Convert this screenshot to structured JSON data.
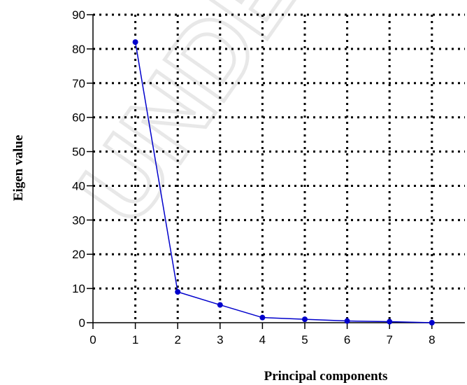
{
  "chart_data": {
    "type": "line",
    "xlabel": "Principal components",
    "ylabel": "Eigen value",
    "xlim": [
      0,
      8
    ],
    "ylim": [
      0,
      90
    ],
    "x_ticks": [
      0,
      1,
      2,
      3,
      4,
      5,
      6,
      7,
      8
    ],
    "y_ticks": [
      0,
      10,
      20,
      30,
      40,
      50,
      60,
      70,
      80,
      90
    ],
    "grid": true,
    "grid_style": "dotted",
    "line_color": "#0000cc",
    "marker_color": "#0000cc",
    "series": [
      {
        "x": [
          1,
          2,
          3,
          4,
          5,
          6,
          7,
          8
        ],
        "values": [
          82,
          9,
          5.2,
          1.5,
          1.0,
          0.5,
          0.3,
          0
        ]
      }
    ]
  },
  "watermark": "UNDER"
}
